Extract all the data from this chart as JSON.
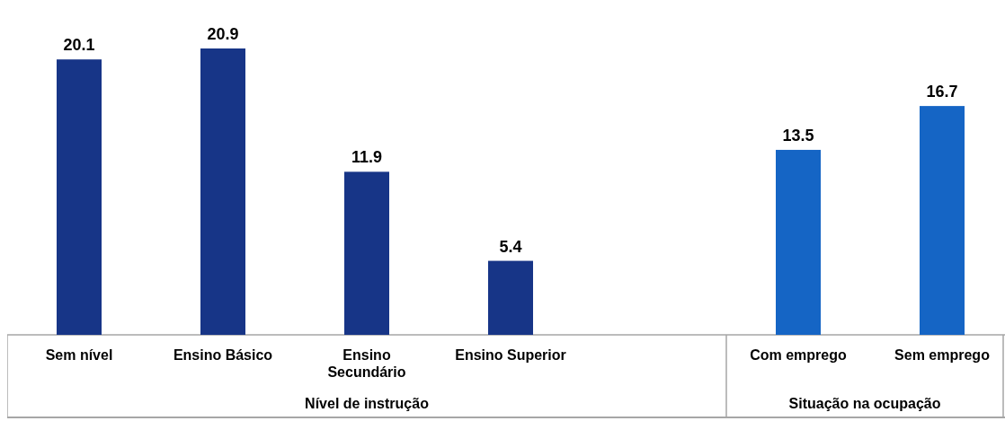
{
  "chart_data": {
    "type": "bar",
    "categories": [
      "Sem nível",
      "Ensino Básico",
      "Ensino Secundário",
      "Ensino Superior",
      null,
      "Com emprego",
      "Sem emprego"
    ],
    "values": [
      20.1,
      20.9,
      11.9,
      5.4,
      null,
      13.5,
      16.7
    ],
    "colors": [
      "#173587",
      "#173587",
      "#173587",
      "#173587",
      null,
      "#1565c5",
      "#1565c5"
    ],
    "data_labels": true,
    "annotations": [
      "Nível de instrução",
      "Situação na ocupação"
    ]
  }
}
